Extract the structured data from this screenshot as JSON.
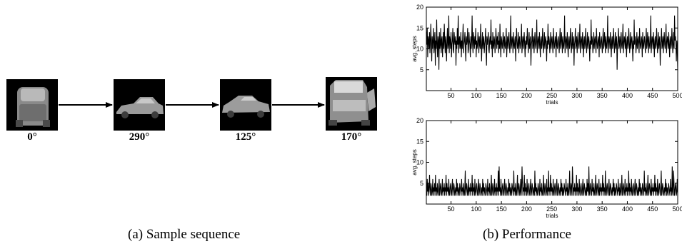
{
  "panel_a": {
    "caption": "(a) Sample sequence",
    "frames": [
      {
        "angle_label": "0°",
        "view": "front"
      },
      {
        "angle_label": "290°",
        "view": "side-left"
      },
      {
        "angle_label": "125°",
        "view": "side-right"
      },
      {
        "angle_label": "170°",
        "view": "rear-oblique"
      }
    ]
  },
  "panel_b": {
    "caption": "(b) Performance"
  },
  "chart_data": [
    {
      "type": "line",
      "title": "",
      "xlabel": "trials",
      "ylabel": "avg. steps",
      "xlim": [
        1,
        500
      ],
      "ylim": [
        0,
        20
      ],
      "xticks": [
        50,
        100,
        150,
        200,
        250,
        300,
        350,
        400,
        450,
        500
      ],
      "yticks": [
        5,
        10,
        15,
        20
      ],
      "grid": false,
      "series": [
        {
          "values": [
            14,
            11,
            15,
            8,
            13,
            12,
            10,
            14,
            9,
            12,
            16,
            11,
            7,
            13,
            10,
            12,
            15,
            9,
            11,
            14,
            6,
            12,
            10,
            17,
            11,
            8,
            13,
            12,
            5,
            14,
            10,
            11,
            15,
            9,
            12,
            13,
            8,
            11,
            14,
            10,
            16,
            12,
            9,
            13,
            11,
            7,
            12,
            15,
            10,
            11,
            18,
            9,
            13,
            12,
            10,
            14,
            8,
            11,
            12,
            15,
            10,
            9,
            14,
            12,
            11,
            13,
            6,
            12,
            10,
            15,
            11,
            18,
            9,
            12,
            13,
            10,
            11,
            14,
            8,
            12,
            10,
            13,
            16,
            9,
            11,
            12,
            14,
            10,
            7,
            13,
            11,
            12,
            15,
            9,
            10,
            14,
            12,
            11,
            8,
            13,
            10,
            12,
            18,
            11,
            9,
            14,
            12,
            10,
            13,
            11,
            15,
            8,
            12,
            10,
            11,
            14,
            12,
            9,
            13,
            11,
            10,
            16,
            12,
            7,
            11,
            14,
            10,
            12,
            13,
            9,
            11,
            12,
            15,
            10,
            6,
            13,
            11,
            12,
            14,
            10,
            9,
            12,
            13,
            11,
            17,
            10,
            12,
            8,
            14,
            11,
            10,
            13,
            12,
            9,
            11,
            15,
            12,
            10,
            13,
            11,
            14,
            9,
            12,
            10,
            16,
            11,
            8,
            13,
            12,
            10,
            11,
            14,
            12,
            9,
            13,
            11,
            10,
            12,
            15,
            8,
            11,
            13,
            10,
            12,
            14,
            11,
            9,
            12,
            18,
            10,
            11,
            13,
            12,
            9,
            14,
            11,
            10,
            12,
            13,
            7,
            11,
            15,
            12,
            10,
            11,
            14,
            9,
            12,
            13,
            10,
            11,
            12,
            16,
            9,
            11,
            13,
            10,
            12,
            14,
            11,
            8,
            12,
            10,
            13,
            11,
            15,
            12,
            9,
            11,
            14,
            10,
            12,
            13,
            6,
            11,
            12,
            15,
            10,
            11,
            13,
            9,
            12,
            14,
            11,
            10,
            12,
            17,
            9,
            11,
            13,
            12,
            10,
            14,
            11,
            8,
            12,
            13,
            10,
            11,
            15,
            12,
            9,
            11,
            14,
            10,
            12,
            13,
            11,
            7,
            12,
            10,
            16,
            11,
            13,
            12,
            9,
            11,
            14,
            10,
            12,
            13,
            11,
            9,
            15,
            12,
            10,
            11,
            13,
            12,
            8,
            14,
            11,
            10,
            12,
            13,
            11,
            9,
            12,
            15,
            10,
            11,
            14,
            12,
            9,
            13,
            11,
            10,
            12,
            18,
            9,
            11,
            13,
            12,
            10,
            14,
            11,
            8,
            12,
            13,
            10,
            11,
            15,
            12,
            9,
            11,
            14,
            10,
            12,
            13,
            6,
            11,
            12,
            15,
            10,
            11,
            13,
            9,
            12,
            14,
            11,
            10,
            12,
            16,
            9,
            11,
            13,
            12,
            10,
            14,
            11,
            8,
            12,
            13,
            10,
            11,
            15,
            12,
            9,
            11,
            14,
            10,
            12,
            13,
            11,
            7,
            12,
            10,
            17,
            11,
            13,
            12,
            9,
            11,
            14,
            10,
            12,
            13,
            11,
            9,
            15,
            12,
            10,
            11,
            13,
            12,
            8,
            14,
            11,
            10,
            12,
            13,
            11,
            9,
            12,
            15,
            10,
            11,
            14,
            12,
            9,
            13,
            11,
            10,
            12,
            18,
            9,
            11,
            13,
            12,
            10,
            14,
            11,
            8,
            12,
            13,
            10,
            11,
            15,
            12,
            9,
            11,
            14,
            10,
            12,
            13,
            5,
            11,
            12,
            15,
            10,
            11,
            13,
            9,
            12,
            14,
            11,
            10,
            12,
            16,
            9,
            11,
            13,
            12,
            10,
            14,
            11,
            8,
            12,
            13,
            10,
            11,
            15,
            12,
            9,
            11,
            14,
            10,
            12,
            13,
            11,
            7,
            12,
            10,
            17,
            11,
            13,
            12,
            9,
            11,
            14,
            10,
            12,
            13,
            11,
            9,
            15,
            12,
            10,
            11,
            13,
            12,
            8,
            14,
            11,
            10,
            12,
            13,
            11,
            9,
            12,
            15,
            10,
            11,
            14,
            12,
            9,
            13,
            11,
            10,
            12,
            18,
            9,
            11,
            13,
            12,
            10,
            14,
            11,
            8,
            12,
            13,
            10,
            11,
            15,
            12,
            9,
            11,
            14,
            10,
            12,
            13,
            6,
            11,
            12,
            15,
            10,
            11,
            13,
            9,
            12,
            14,
            11,
            10,
            12,
            16,
            9,
            11,
            13,
            12,
            10,
            14,
            11,
            8,
            12,
            13,
            10,
            11,
            15,
            12,
            9,
            11,
            14,
            10,
            18,
            12,
            13,
            11,
            7,
            12,
            10,
            5
          ]
        }
      ]
    },
    {
      "type": "line",
      "title": "",
      "xlabel": "trials",
      "ylabel": "avg. steps",
      "xlim": [
        1,
        500
      ],
      "ylim": [
        0,
        20
      ],
      "xticks": [
        50,
        100,
        150,
        200,
        250,
        300,
        350,
        400,
        450,
        500
      ],
      "yticks": [
        5,
        10,
        15,
        20
      ],
      "grid": false,
      "series": [
        {
          "values": [
            4,
            2,
            6,
            3,
            5,
            2,
            4,
            7,
            3,
            2,
            5,
            4,
            2,
            3,
            6,
            2,
            4,
            3,
            5,
            2,
            7,
            3,
            4,
            2,
            5,
            3,
            2,
            4,
            6,
            2,
            3,
            5,
            4,
            2,
            3,
            6,
            2,
            4,
            3,
            5,
            2,
            4,
            3,
            7,
            2,
            5,
            3,
            4,
            2,
            6,
            3,
            2,
            4,
            5,
            3,
            2,
            4,
            6,
            2,
            3,
            5,
            4,
            2,
            3,
            4,
            2,
            6,
            3,
            5,
            2,
            4,
            3,
            2,
            5,
            4,
            3,
            2,
            6,
            3,
            4,
            2,
            5,
            3,
            2,
            4,
            8,
            2,
            3,
            5,
            4,
            2,
            3,
            6,
            2,
            4,
            3,
            5,
            2,
            4,
            3,
            7,
            2,
            5,
            3,
            4,
            2,
            6,
            3,
            2,
            4,
            5,
            3,
            2,
            4,
            6,
            2,
            3,
            5,
            4,
            2,
            3,
            4,
            2,
            6,
            3,
            5,
            2,
            4,
            3,
            2,
            5,
            4,
            3,
            2,
            6,
            3,
            4,
            2,
            5,
            3,
            2,
            4,
            7,
            2,
            3,
            5,
            4,
            2,
            3,
            6,
            2,
            4,
            3,
            5,
            2,
            4,
            3,
            8,
            2,
            9,
            3,
            4,
            2,
            6,
            3,
            2,
            4,
            5,
            3,
            2,
            4,
            6,
            2,
            3,
            5,
            4,
            2,
            3,
            4,
            2,
            6,
            3,
            5,
            2,
            4,
            3,
            2,
            5,
            4,
            3,
            2,
            8,
            3,
            4,
            2,
            5,
            3,
            2,
            4,
            7,
            2,
            3,
            5,
            4,
            2,
            3,
            6,
            2,
            4,
            9,
            5,
            2,
            4,
            3,
            7,
            2,
            5,
            3,
            4,
            2,
            6,
            3,
            2,
            4,
            5,
            3,
            2,
            4,
            6,
            2,
            3,
            5,
            4,
            2,
            3,
            4,
            2,
            8,
            3,
            5,
            2,
            4,
            3,
            2,
            5,
            4,
            3,
            2,
            6,
            3,
            4,
            2,
            5,
            3,
            2,
            4,
            7,
            2,
            3,
            5,
            4,
            2,
            3,
            6,
            2,
            4,
            3,
            8,
            2,
            4,
            3,
            7,
            2,
            5,
            3,
            4,
            2,
            6,
            3,
            2,
            4,
            5,
            3,
            2,
            4,
            6,
            2,
            3,
            5,
            4,
            2,
            3,
            4,
            2,
            6,
            3,
            5,
            2,
            4,
            3,
            2,
            5,
            4,
            3,
            2,
            6,
            3,
            4,
            2,
            5,
            3,
            2,
            4,
            8,
            2,
            3,
            5,
            4,
            2,
            9,
            6,
            2,
            4,
            3,
            5,
            2,
            4,
            3,
            7,
            2,
            5,
            3,
            4,
            2,
            6,
            3,
            2,
            4,
            5,
            3,
            2,
            4,
            6,
            2,
            3,
            5,
            4,
            2,
            3,
            4,
            2,
            6,
            3,
            5,
            2,
            9,
            3,
            2,
            5,
            4,
            3,
            2,
            6,
            3,
            4,
            2,
            5,
            3,
            2,
            4,
            7,
            2,
            3,
            5,
            4,
            2,
            3,
            6,
            2,
            4,
            3,
            5,
            2,
            4,
            3,
            7,
            2,
            5,
            3,
            4,
            2,
            8,
            3,
            2,
            4,
            5,
            3,
            2,
            4,
            6,
            2,
            3,
            5,
            4,
            2,
            3,
            4,
            2,
            6,
            3,
            5,
            2,
            4,
            3,
            2,
            5,
            4,
            3,
            2,
            6,
            3,
            4,
            2,
            5,
            3,
            2,
            4,
            7,
            2,
            3,
            5,
            4,
            2,
            3,
            6,
            2,
            4,
            3,
            5,
            2,
            4,
            3,
            8,
            2,
            5,
            3,
            4,
            2,
            6,
            3,
            2,
            4,
            5,
            3,
            2,
            4,
            6,
            2,
            3,
            5,
            4,
            2,
            3,
            4,
            2,
            6,
            3,
            5,
            2,
            4,
            3,
            2,
            5,
            4,
            3,
            2,
            8,
            3,
            4,
            2,
            5,
            3,
            2,
            4,
            7,
            2,
            3,
            5,
            4,
            2,
            3,
            6,
            2,
            4,
            3,
            5,
            2,
            4,
            3,
            7,
            2,
            5,
            3,
            4,
            2,
            6,
            3,
            2,
            4,
            5,
            3,
            2,
            4,
            8,
            2,
            3,
            5,
            4,
            2,
            3,
            4,
            2,
            6,
            3,
            5,
            2,
            4,
            3,
            2,
            5,
            4,
            3,
            2,
            6,
            3,
            4,
            2,
            9,
            3,
            2,
            8,
            5,
            2,
            3,
            5,
            4,
            2,
            3,
            6,
            2
          ]
        }
      ]
    }
  ]
}
